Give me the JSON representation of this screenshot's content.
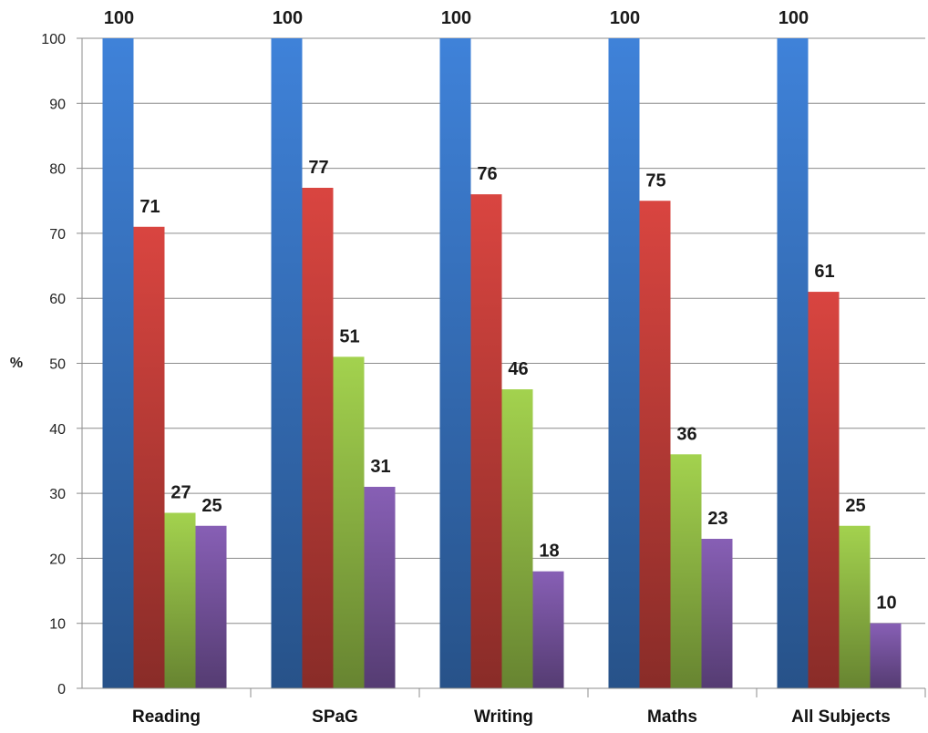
{
  "chart_data": {
    "type": "bar",
    "title": "",
    "xlabel": "",
    "ylabel": "%",
    "ylim": [
      0,
      100
    ],
    "yticks": [
      0,
      10,
      20,
      30,
      40,
      50,
      60,
      70,
      80,
      90,
      100
    ],
    "grid": true,
    "legend": "none",
    "categories": [
      "Reading",
      "SPaG",
      "Writing",
      "Maths",
      "All Subjects"
    ],
    "series": [
      {
        "values": [
          100,
          100,
          100,
          100,
          100
        ],
        "color": "#3a78c9"
      },
      {
        "values": [
          71,
          77,
          76,
          75,
          61
        ],
        "color": "#c9403b"
      },
      {
        "values": [
          27,
          51,
          46,
          36,
          25
        ],
        "color": "#97c248"
      },
      {
        "values": [
          25,
          31,
          18,
          23,
          10
        ],
        "color": "#7d58a8"
      }
    ]
  }
}
